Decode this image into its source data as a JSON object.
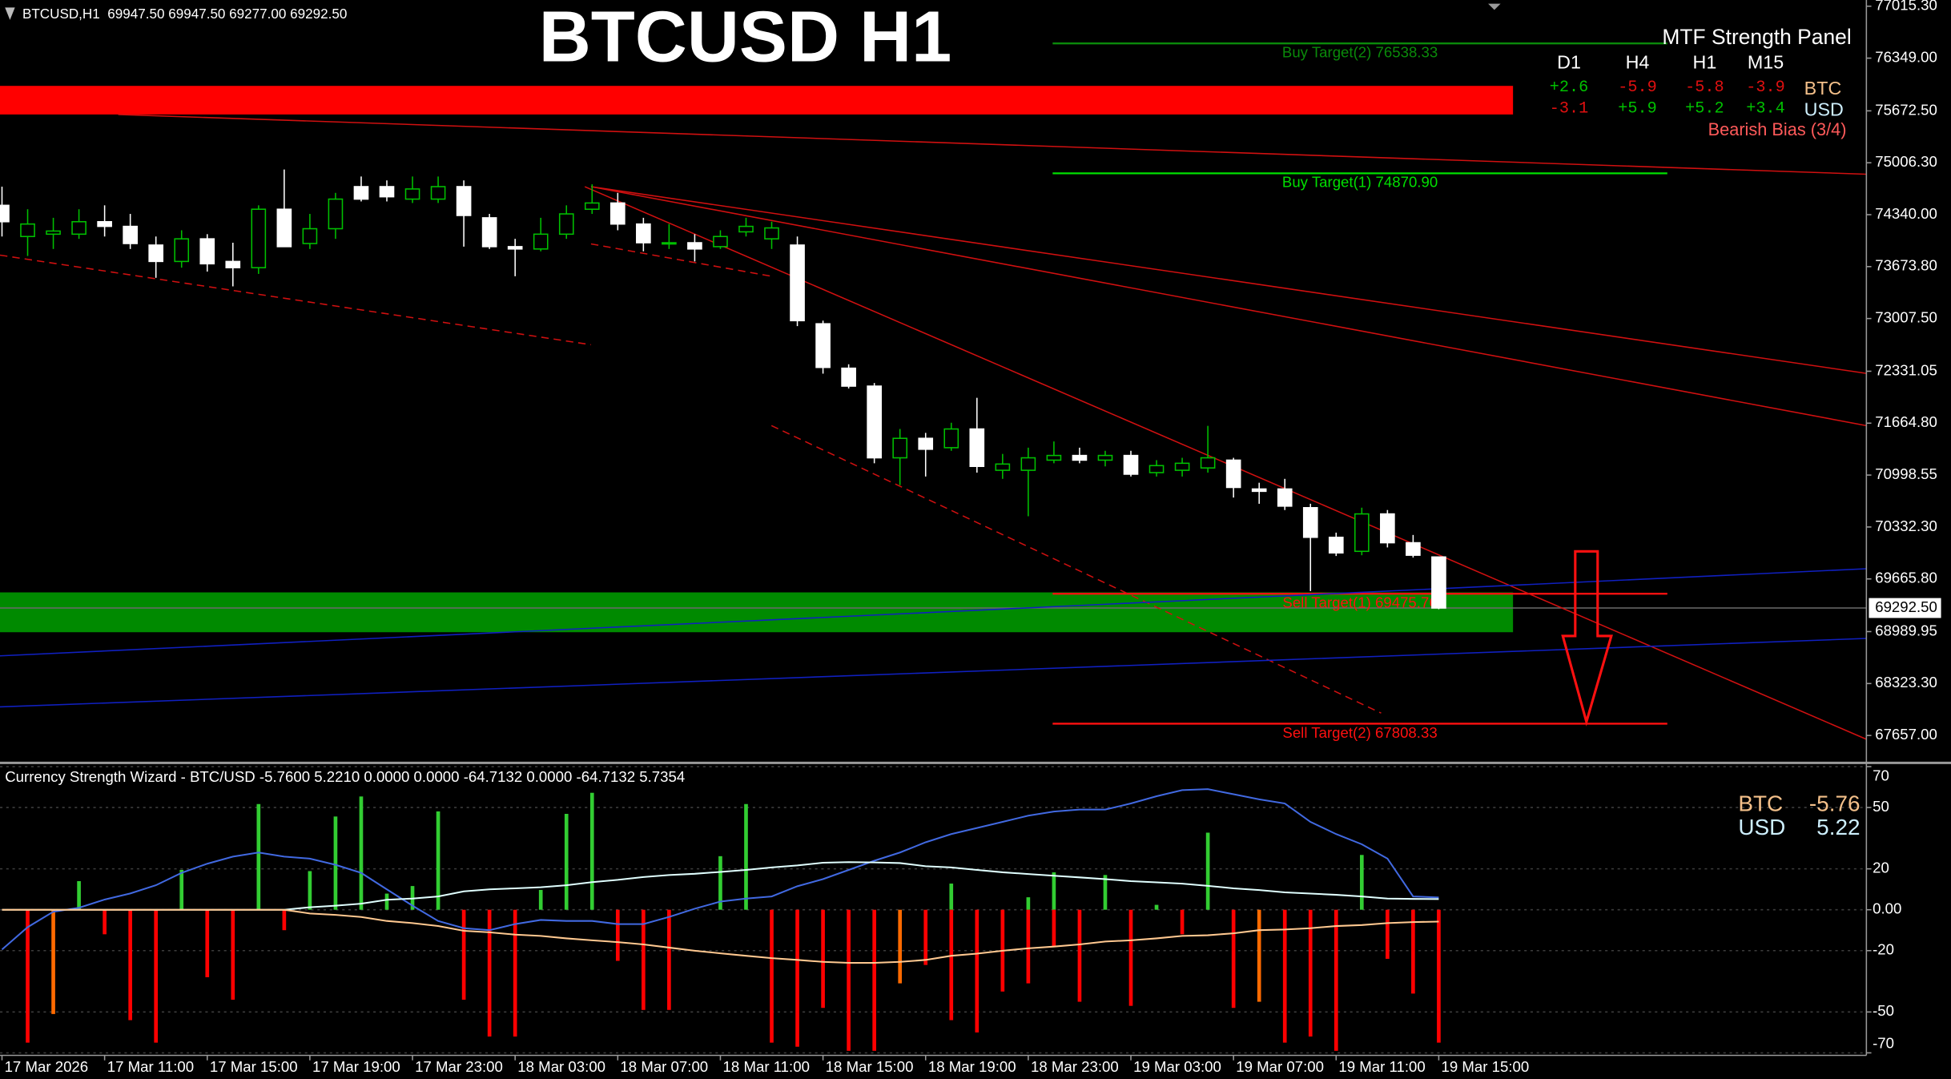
{
  "chart_data": [
    {
      "type": "candlestick",
      "title": "BTCUSD H1",
      "header": "BTCUSD,H1  69947.50 69947.50 69277.00 69292.50",
      "categories": [
        "17 Mar 2026",
        null,
        null,
        null,
        "17 Mar 11:00",
        null,
        null,
        null,
        "17 Mar 15:00",
        null,
        null,
        null,
        "17 Mar 19:00",
        null,
        null,
        null,
        "17 Mar 23:00",
        null,
        null,
        null,
        "18 Mar 03:00",
        null,
        null,
        null,
        "18 Mar 07:00",
        null,
        null,
        null,
        "18 Mar 11:00",
        null,
        null,
        null,
        "18 Mar 15:00",
        null,
        null,
        null,
        "18 Mar 19:00",
        null,
        null,
        null,
        "18 Mar 23:00",
        null,
        null,
        null,
        "19 Mar 03:00",
        null,
        null,
        null,
        "19 Mar 07:00",
        null,
        null,
        null,
        "19 Mar 11:00",
        null,
        null,
        null,
        "19 Mar 15:00"
      ],
      "open": [
        74460,
        74060,
        74090,
        74090,
        74250,
        74190,
        73950,
        73740,
        74030,
        73740,
        73660,
        74410,
        73970,
        74160,
        74700,
        74700,
        74540,
        74540,
        74700,
        74300,
        73930,
        73900,
        74090,
        74410,
        74490,
        74220,
        73970,
        73980,
        73930,
        74120,
        74030,
        73950,
        72940,
        72370,
        72140,
        71220,
        71470,
        71350,
        71590,
        71060,
        71060,
        71190,
        71250,
        71190,
        71250,
        71030,
        71060,
        71090,
        71190,
        70820,
        70820,
        70580,
        70200,
        70020,
        70500,
        70130,
        69947.5
      ],
      "high": [
        74700,
        74410,
        74300,
        74410,
        74460,
        74350,
        74060,
        74140,
        74090,
        73980,
        74460,
        74920,
        74350,
        74620,
        74830,
        74780,
        74830,
        74830,
        74780,
        74350,
        74030,
        74300,
        74460,
        74730,
        74620,
        74300,
        74220,
        74090,
        74140,
        74300,
        74250,
        74060,
        72980,
        72420,
        72180,
        71590,
        71540,
        71670,
        71990,
        71270,
        71350,
        71430,
        71350,
        71310,
        71310,
        71190,
        71220,
        71630,
        71220,
        70900,
        70950,
        70630,
        70260,
        70580,
        70550,
        70230,
        69947.5
      ],
      "low": [
        74060,
        73810,
        73900,
        74030,
        74060,
        73900,
        73530,
        73660,
        73610,
        73420,
        73580,
        73930,
        73900,
        74030,
        74510,
        74510,
        74490,
        74490,
        73930,
        73900,
        73550,
        73870,
        74030,
        74350,
        74140,
        73870,
        73900,
        73740,
        73900,
        74060,
        73900,
        72910,
        72300,
        72110,
        71150,
        70870,
        70980,
        71310,
        71030,
        70950,
        70470,
        71150,
        71150,
        71110,
        70980,
        70980,
        70980,
        71030,
        70710,
        70630,
        70550,
        69510,
        69960,
        69970,
        70070,
        69940,
        69277
      ],
      "close": [
        74250,
        74220,
        74130,
        74250,
        74190,
        73970,
        73740,
        74030,
        73710,
        73660,
        74410,
        73930,
        74160,
        74540,
        74540,
        74570,
        74670,
        74700,
        74330,
        73930,
        73900,
        74090,
        74350,
        74490,
        74220,
        73980,
        73980,
        73900,
        74060,
        74190,
        74170,
        72980,
        72380,
        72140,
        71220,
        71470,
        71330,
        71590,
        71110,
        71140,
        71220,
        71250,
        71190,
        71250,
        71010,
        71120,
        71150,
        71220,
        70840,
        70790,
        70600,
        70200,
        70000,
        70500,
        70130,
        69970,
        69292.5
      ],
      "up_color": "#00c000",
      "down_color": "#ffffff",
      "ylim": [
        67321,
        77095
      ],
      "yticks": [
        {
          "value": 77015.3,
          "label": "77015.30"
        },
        {
          "value": 76349,
          "label": "76349.00"
        },
        {
          "value": 75672.5,
          "label": "75672.50"
        },
        {
          "value": 75006.3,
          "label": "75006.30"
        },
        {
          "value": 74340,
          "label": "74340.00"
        },
        {
          "value": 73673.8,
          "label": "73673.80"
        },
        {
          "value": 73007.5,
          "label": "73007.50"
        },
        {
          "value": 72331.05,
          "label": "72331.05"
        },
        {
          "value": 71664.8,
          "label": "71664.80"
        },
        {
          "value": 70998.55,
          "label": "70998.55"
        },
        {
          "value": 70332.3,
          "label": "70332.30"
        },
        {
          "value": 69665.8,
          "label": "69665.80"
        },
        {
          "value": 68989.95,
          "label": "68989.95"
        },
        {
          "value": 68323.3,
          "label": "68323.30"
        },
        {
          "value": 67657,
          "label": "67657.00"
        }
      ],
      "price_label": {
        "value": 69292.5,
        "label": "69292.50"
      },
      "levels": [
        {
          "label": "Buy Target(2) 76538.33",
          "value": 76538.33,
          "color": "#0a8a0a"
        },
        {
          "label": "Buy Target(1) 74870.90",
          "value": 74870.9,
          "color": "#00e000"
        },
        {
          "label": "Sell Target(1) 69475.76",
          "value": 69475.76,
          "color": "#ff1010"
        },
        {
          "label": "Sell Target(2) 67808.33",
          "value": 67808.33,
          "color": "#ff1010"
        }
      ],
      "zones": [
        {
          "from": 75993,
          "to": 75626,
          "color": "#ff0000"
        },
        {
          "from": 69493,
          "to": 68982,
          "color": "#008a00"
        }
      ],
      "panel": {
        "title": "MTF Strength Panel",
        "columns": [
          "D1",
          "H4",
          "H1",
          "M15"
        ],
        "rows": [
          {
            "name": "BTC",
            "name_color": "#f4c08a",
            "cells": [
              "+2.6",
              "-5.9",
              "-5.8",
              "-3.9"
            ],
            "colors": [
              "#00c000",
              "#e01010",
              "#e01010",
              "#e01010"
            ]
          },
          {
            "name": "USD",
            "name_color": "#cdeffd",
            "cells": [
              "-3.1",
              "+5.9",
              "+5.2",
              "+3.4"
            ],
            "colors": [
              "#e01010",
              "#00c000",
              "#00c000",
              "#00c000"
            ]
          }
        ],
        "bias": "Bearish Bias (3/4)",
        "bias_color": "#ff5a5a"
      }
    },
    {
      "type": "combo",
      "title": "Currency Strength Wizard - BTC/USD -5.7600 5.2210 0.0000 0.0000 -64.7132 0.0000 -64.7132 5.7354",
      "ylim": [
        -70,
        70
      ],
      "yticks": [
        70,
        50,
        20,
        {
          "value": 0,
          "label": "0.00"
        },
        -20,
        -50,
        -70
      ],
      "grid": true,
      "series": [
        {
          "kind": "bar",
          "color": "#32cd32",
          "values": [
            0,
            0,
            0,
            14,
            0,
            0,
            0,
            19.5,
            0,
            0,
            51.7,
            0,
            18.9,
            45.6,
            55.4,
            7.9,
            11.6,
            48.1,
            0,
            0,
            0,
            9.7,
            46.9,
            57.2,
            0,
            0,
            0,
            0,
            26.2,
            51.7,
            0,
            0,
            0,
            0,
            0,
            0,
            0,
            12.8,
            0,
            0,
            6.1,
            18.3,
            0,
            17,
            0,
            2.4,
            0,
            37.7,
            0,
            0,
            0,
            0,
            0,
            26.8,
            0,
            0,
            0
          ]
        },
        {
          "kind": "bar",
          "color": "#ff0000",
          "values": [
            0,
            -65,
            0,
            0,
            -12,
            -54,
            -65,
            0,
            -33,
            -44,
            0,
            -10,
            0,
            0,
            0,
            0,
            0,
            0,
            -44,
            -62,
            -62,
            0,
            0,
            0,
            -25,
            -49,
            -49,
            0,
            0,
            0,
            -65,
            -67,
            -48,
            -69,
            -69,
            0,
            -27,
            -54,
            -60,
            -40,
            -36,
            -18,
            -45,
            0,
            -47,
            0,
            -12,
            0,
            -48,
            0,
            -65,
            -62,
            -69,
            0,
            -24,
            -41,
            -65
          ]
        },
        {
          "kind": "bar",
          "color": "#ff6a00",
          "values": [
            0,
            0,
            -51,
            0,
            0,
            0,
            0,
            0,
            0,
            0,
            0,
            0,
            0,
            0,
            0,
            0,
            0,
            0,
            0,
            0,
            0,
            0,
            0,
            0,
            0,
            0,
            0,
            0,
            0,
            0,
            0,
            0,
            0,
            0,
            0,
            -36,
            0,
            0,
            0,
            0,
            0,
            0,
            0,
            0,
            0,
            0,
            0,
            0,
            0,
            -45,
            0,
            0,
            0,
            0,
            0,
            0,
            0
          ]
        },
        {
          "kind": "line",
          "color": "#4169e1",
          "values": [
            -19.5,
            -8.5,
            -1,
            1,
            5,
            8,
            12,
            18,
            22.5,
            26,
            28,
            26,
            25,
            22,
            18,
            10,
            2,
            -5.5,
            -9,
            -10,
            -7,
            -5,
            -5.5,
            -5.5,
            -7,
            -7,
            -3.5,
            0.5,
            4,
            5.5,
            6.5,
            11.5,
            15,
            19.5,
            24,
            28,
            33,
            37,
            40,
            43,
            46,
            48,
            49,
            49,
            52,
            55.5,
            58.5,
            59,
            56.5,
            54,
            52,
            43,
            37,
            32,
            25,
            6.5,
            6
          ]
        },
        {
          "name": "USD",
          "kind": "line",
          "color": "#e0ffff",
          "values": [
            0,
            0,
            0,
            0,
            0,
            0,
            0,
            0,
            0,
            0,
            0,
            0,
            1.2,
            2,
            3,
            4.9,
            5.5,
            6.5,
            9,
            10,
            10.5,
            11,
            12,
            13.5,
            14.6,
            16,
            17,
            17.6,
            18.5,
            19.5,
            20.7,
            21.7,
            23,
            23.3,
            23.1,
            22.8,
            21.3,
            20.7,
            19.5,
            18.3,
            17.5,
            16.6,
            15.8,
            15,
            14,
            13.4,
            12.8,
            11.7,
            10.5,
            9.6,
            8.5,
            7.9,
            7.3,
            6.5,
            5.5,
            5.3,
            5.22
          ]
        },
        {
          "name": "BTC",
          "kind": "line",
          "color": "#ffc890",
          "values": [
            0,
            0,
            0,
            0,
            0,
            0,
            0,
            0,
            0,
            0,
            0,
            0,
            -1.8,
            -2.5,
            -3.5,
            -5.5,
            -6.5,
            -8,
            -10.3,
            -11,
            -12.2,
            -12.8,
            -14,
            -15,
            -15.8,
            -17,
            -18.5,
            -20,
            -21.3,
            -22.5,
            -23.7,
            -24.5,
            -25.5,
            -26,
            -26,
            -25.5,
            -24.5,
            -22.5,
            -21.5,
            -20,
            -18.9,
            -18,
            -17,
            -15.5,
            -15,
            -14,
            -12.8,
            -12.5,
            -11.5,
            -10,
            -9.7,
            -9,
            -8,
            -7.5,
            -6.5,
            -6,
            -5.76
          ]
        }
      ],
      "readout": [
        {
          "name": "BTC",
          "value": -5.76,
          "color": "#f4c08a"
        },
        {
          "name": "USD",
          "value": 5.22,
          "color": "#cdeffd"
        }
      ]
    }
  ]
}
